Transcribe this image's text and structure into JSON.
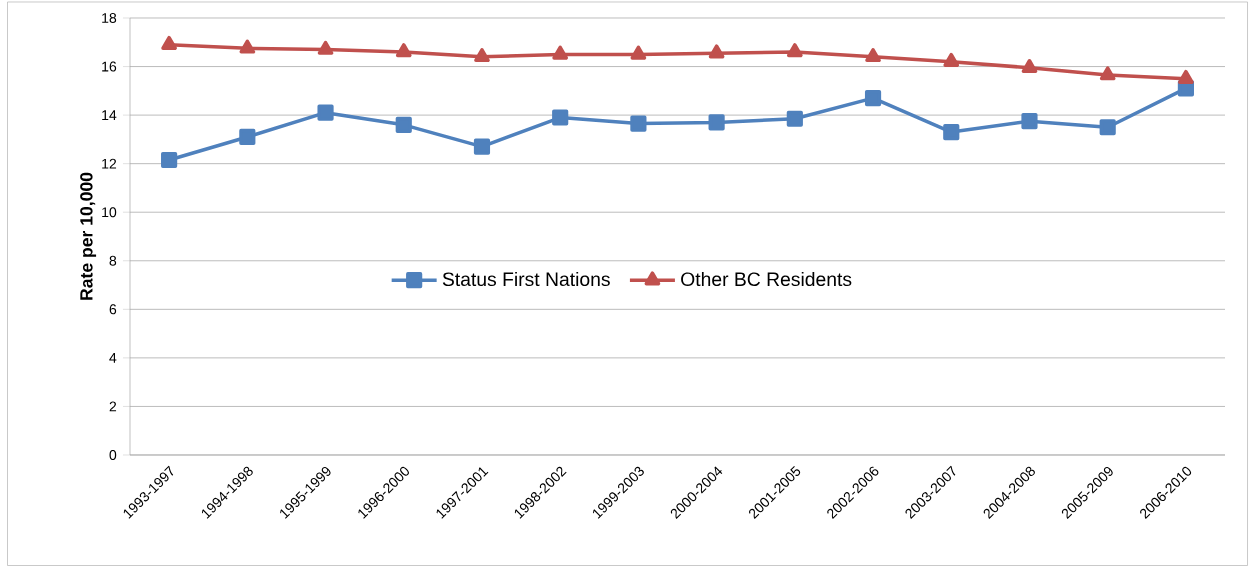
{
  "chart_data": {
    "type": "line",
    "ylabel": "Rate per 10,000",
    "categories": [
      "1993-1997",
      "1994-1998",
      "1995-1999",
      "1996-2000",
      "1997-2001",
      "1998-2002",
      "1999-2003",
      "2000-2004",
      "2001-2005",
      "2002-2006",
      "2003-2007",
      "2004-2008",
      "2005-2009",
      "2006-2010"
    ],
    "series": [
      {
        "name": "Status First Nations",
        "color": "#4f81bd",
        "marker": "square",
        "values": [
          12.15,
          13.1,
          14.1,
          13.6,
          12.7,
          13.9,
          13.65,
          13.7,
          13.85,
          14.7,
          13.3,
          13.75,
          13.5,
          15.1
        ]
      },
      {
        "name": "Other BC Residents",
        "color": "#c0504d",
        "marker": "triangle",
        "values": [
          16.9,
          16.75,
          16.7,
          16.6,
          16.4,
          16.5,
          16.5,
          16.55,
          16.6,
          16.4,
          16.2,
          15.95,
          15.65,
          15.5
        ]
      }
    ],
    "ylim": [
      0,
      18
    ],
    "yticks": [
      0,
      2,
      4,
      6,
      8,
      10,
      12,
      14,
      16,
      18
    ],
    "grid": "y",
    "legend": "center"
  }
}
